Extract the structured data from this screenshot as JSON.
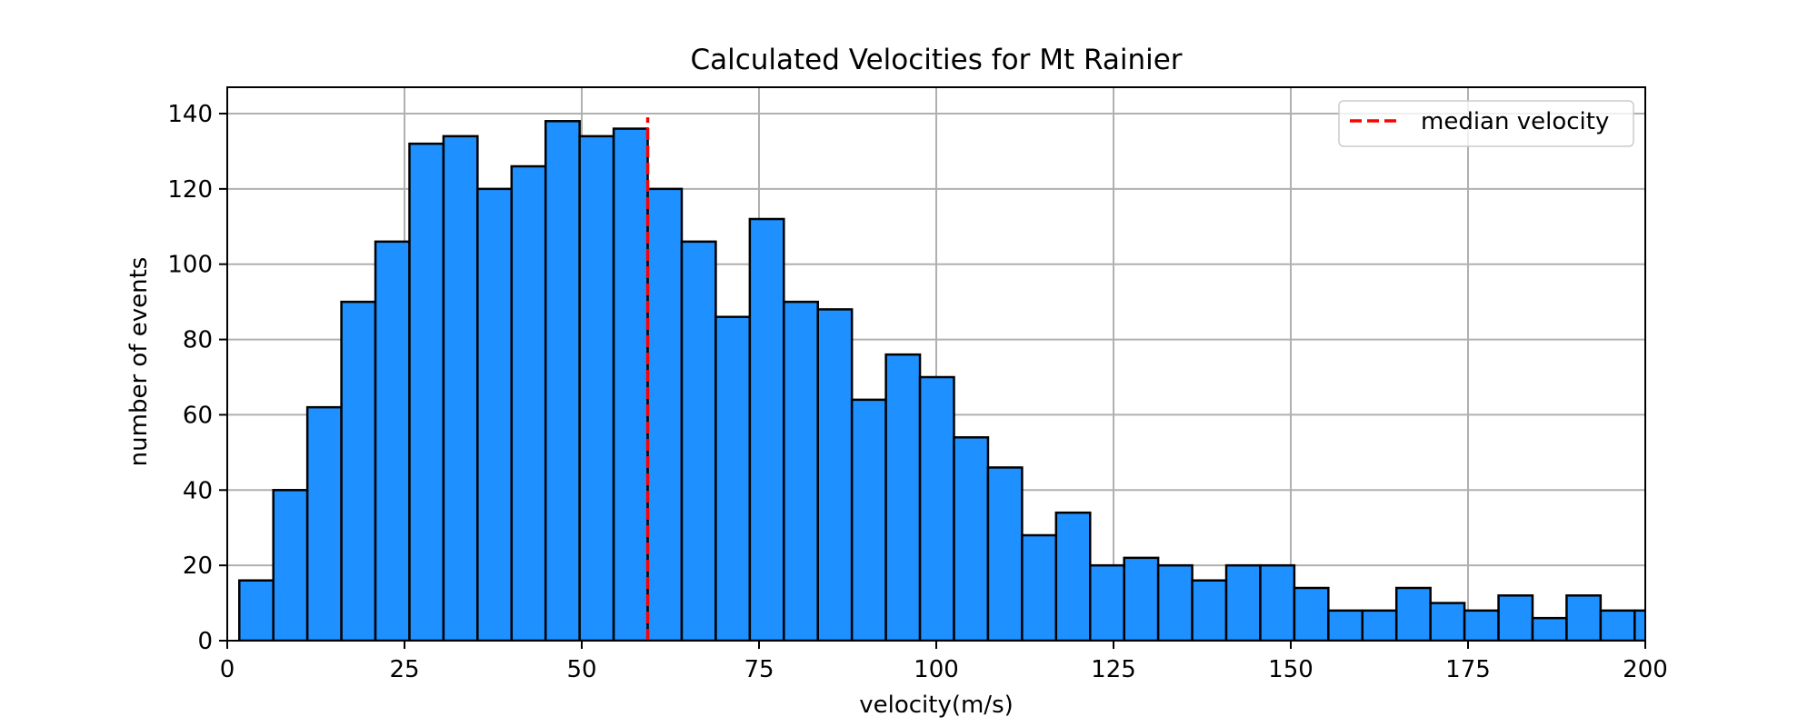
{
  "chart_data": {
    "type": "bar",
    "title": "Calculated Velocities for Mt Rainier",
    "xlabel": "velocity(m/s)",
    "ylabel": "number of events",
    "xlim": [
      0,
      200
    ],
    "ylim": [
      0,
      147
    ],
    "xticks": [
      0,
      25,
      50,
      75,
      100,
      125,
      150,
      175,
      200
    ],
    "yticks": [
      0,
      20,
      40,
      60,
      80,
      100,
      120,
      140
    ],
    "grid": true,
    "legend_position": "top-right",
    "bar_color": "#1e90ff",
    "edge_color": "#000000",
    "bin_edges": [
      1.7,
      6.5,
      11.3,
      16.1,
      20.9,
      25.7,
      30.5,
      35.3,
      40.1,
      44.9,
      49.7,
      54.5,
      59.3,
      64.1,
      68.9,
      73.7,
      78.5,
      83.3,
      88.1,
      92.9,
      97.7,
      102.5,
      107.3,
      112.1,
      116.9,
      121.7,
      126.5,
      131.3,
      136.1,
      140.9,
      145.7,
      150.5,
      155.3,
      160.1,
      164.9,
      169.7,
      174.5,
      179.3,
      184.1,
      188.9,
      193.7,
      198.5,
      203.3
    ],
    "counts": [
      16,
      40,
      62,
      90,
      106,
      132,
      134,
      120,
      126,
      138,
      134,
      136,
      120,
      106,
      86,
      112,
      90,
      88,
      64,
      76,
      70,
      54,
      46,
      28,
      34,
      20,
      22,
      20,
      16,
      20,
      20,
      14,
      8,
      8,
      14,
      10,
      8,
      12,
      6,
      12,
      8,
      8
    ],
    "median": {
      "name": "median velocity",
      "value": 59.3,
      "color": "#ff0000",
      "style": "dashed"
    }
  }
}
